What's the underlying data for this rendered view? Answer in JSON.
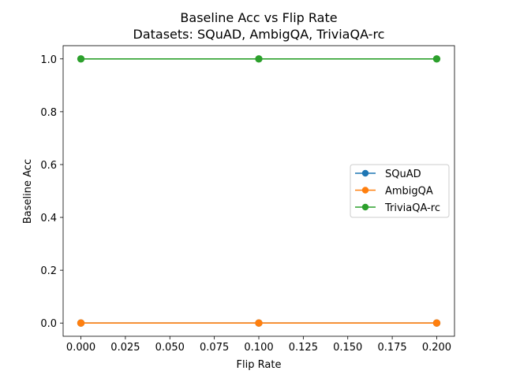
{
  "chart_data": {
    "type": "line",
    "title": "Baseline Acc vs Flip Rate",
    "subtitle": "Datasets: SQuAD, AmbigQA, TriviaQA-rc",
    "xlabel": "Flip Rate",
    "ylabel": "Baseline Acc",
    "x": [
      0.0,
      0.1,
      0.2
    ],
    "xlim": [
      -0.01,
      0.21
    ],
    "ylim": [
      -0.05,
      1.05
    ],
    "xticks": [
      0.0,
      0.025,
      0.05,
      0.075,
      0.1,
      0.125,
      0.15,
      0.175,
      0.2
    ],
    "xtick_labels": [
      "0.000",
      "0.025",
      "0.050",
      "0.075",
      "0.100",
      "0.125",
      "0.150",
      "0.175",
      "0.200"
    ],
    "yticks": [
      0.0,
      0.2,
      0.4,
      0.6,
      0.8,
      1.0
    ],
    "ytick_labels": [
      "0.0",
      "0.2",
      "0.4",
      "0.6",
      "0.8",
      "1.0"
    ],
    "grid": false,
    "legend_position": "center-right",
    "series": [
      {
        "name": "SQuAD",
        "values": [
          0.0,
          0.0,
          0.0
        ],
        "color": "#1f77b4",
        "marker": "circle"
      },
      {
        "name": "AmbigQA",
        "values": [
          0.0,
          0.0,
          0.0
        ],
        "color": "#ff7f0e",
        "marker": "circle"
      },
      {
        "name": "TriviaQA-rc",
        "values": [
          1.0,
          1.0,
          1.0
        ],
        "color": "#2ca02c",
        "marker": "circle"
      }
    ]
  }
}
